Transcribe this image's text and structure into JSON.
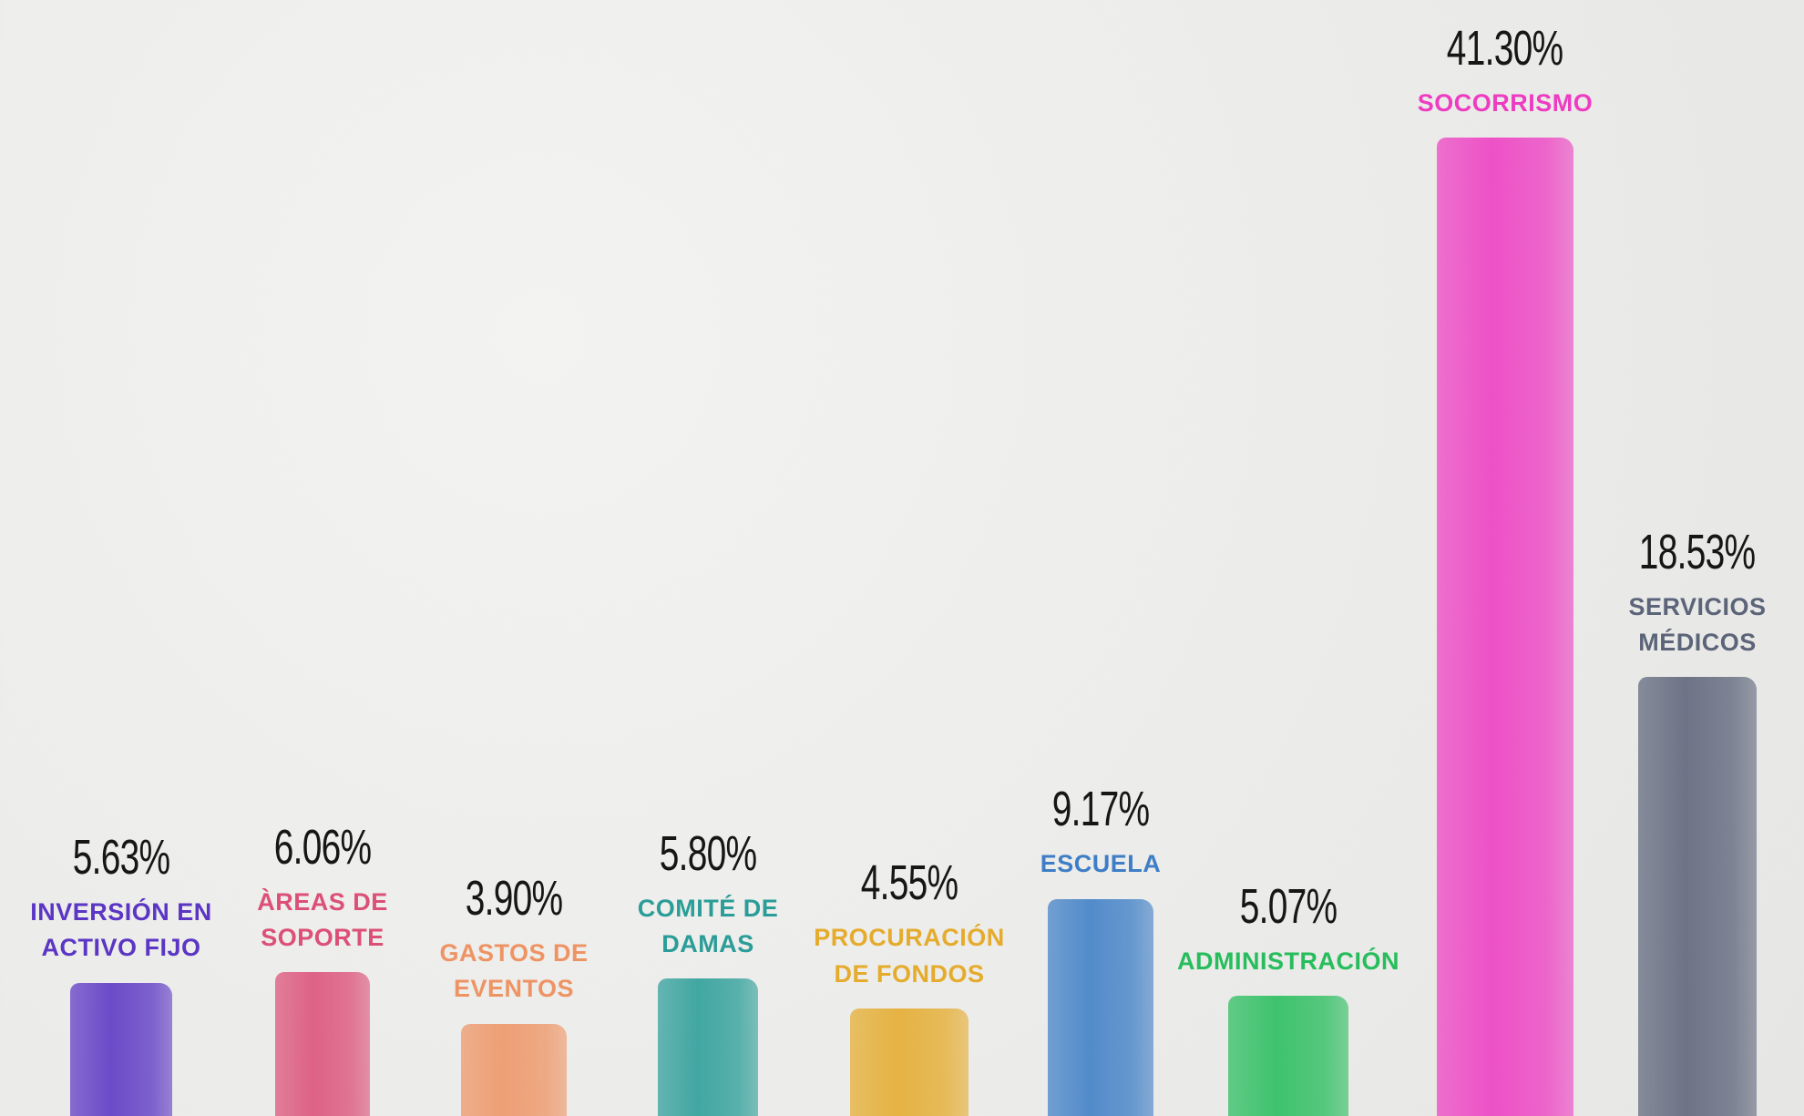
{
  "chart_data": {
    "type": "bar",
    "categories": [
      "INVERSIÓN EN ACTIVO FIJO",
      "ÀREAS DE SOPORTE",
      "GASTOS DE EVENTOS",
      "COMITÉ DE DAMAS",
      "PROCURACIÓN DE FONDOS",
      "ESCUELA",
      "ADMINISTRACIÓN",
      "SOCORRISMO",
      "SERVICIOS MÉDICOS"
    ],
    "values": [
      5.63,
      6.06,
      3.9,
      5.8,
      4.55,
      9.17,
      5.07,
      41.3,
      18.53
    ],
    "value_labels": [
      "5.63%",
      "6.06%",
      "3.90%",
      "5.80%",
      "4.55%",
      "9.17%",
      "5.07%",
      "41.30%",
      "18.53%"
    ],
    "colors": [
      "#5b35c4",
      "#dc4f77",
      "#ee9464",
      "#2a9d98",
      "#e5ab2c",
      "#3d7ec6",
      "#27bd5c",
      "#ee3cc2",
      "#5c6479"
    ]
  }
}
